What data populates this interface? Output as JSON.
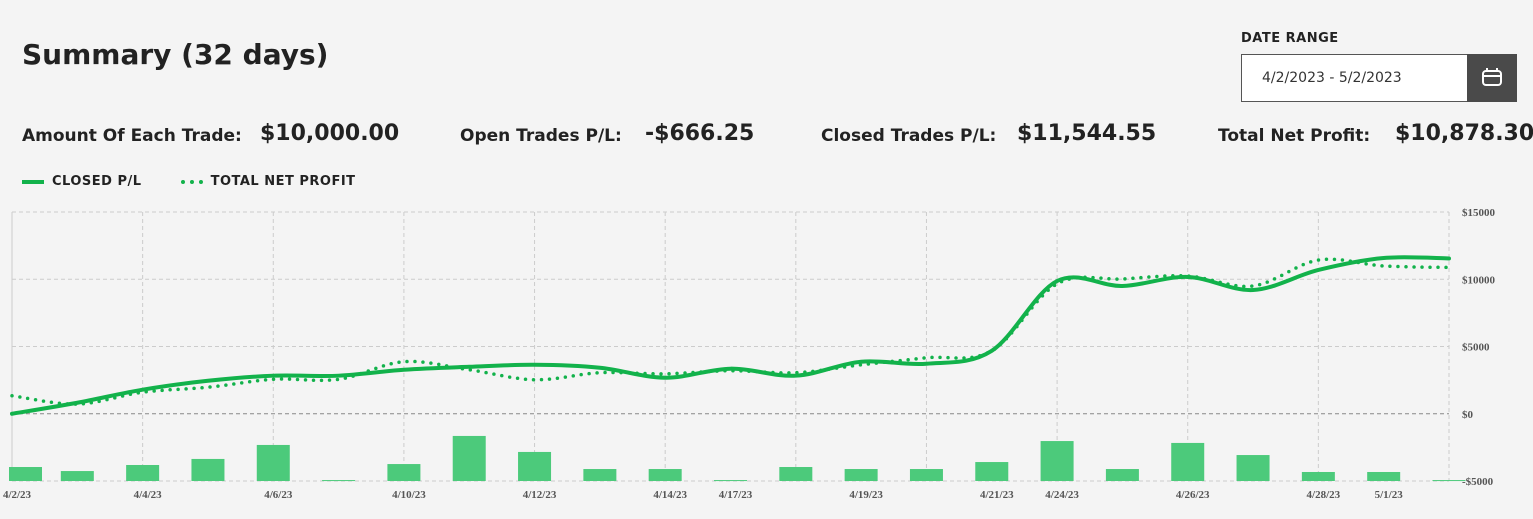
{
  "header": {
    "title": "Summary (32 days)"
  },
  "date_range": {
    "label": "DATE RANGE",
    "value": "4/2/2023 - 5/2/2023"
  },
  "stats": [
    {
      "label": "Amount Of Each Trade:",
      "value": "$10,000.00"
    },
    {
      "label": "Open Trades P/L:",
      "value": "-$666.25"
    },
    {
      "label": "Closed Trades P/L:",
      "value": "$11,544.55"
    },
    {
      "label": "Total Net Profit:",
      "value": "$10,878.30"
    }
  ],
  "chart_data": {
    "type": "line",
    "categories": [
      "4/2/23",
      null,
      "4/4/23",
      null,
      "4/6/23",
      null,
      "4/10/23",
      null,
      "4/12/23",
      null,
      "4/14/23",
      "4/17/23",
      null,
      "4/19/23",
      null,
      "4/21/23",
      "4/24/23",
      null,
      "4/26/23",
      null,
      "4/28/23",
      "5/1/23",
      null
    ],
    "series": [
      {
        "name": "CLOSED P/L",
        "color": "#12b24b",
        "style": "solid",
        "values": [
          0,
          820,
          1790,
          2450,
          2830,
          2830,
          3270,
          3490,
          3640,
          3420,
          2680,
          3350,
          2830,
          3870,
          3720,
          4680,
          9870,
          9500,
          10170,
          9200,
          10690,
          11580,
          11545
        ]
      },
      {
        "name": "TOTAL NET PROFIT",
        "color": "#12b24b",
        "style": "dotted",
        "values": [
          1340,
          720,
          1600,
          1970,
          2560,
          2560,
          3870,
          3270,
          2530,
          3050,
          2970,
          3200,
          3050,
          3640,
          4160,
          4680,
          9660,
          10020,
          10240,
          9500,
          11430,
          10990,
          10878
        ]
      },
      {
        "type": "bar",
        "color": "#4cca7b",
        "values": [
          -3960,
          -4260,
          -3810,
          -3360,
          -2320,
          -4930,
          -3740,
          -1650,
          -2840,
          -4110,
          -4110,
          -4930,
          -3960,
          -4110,
          -4110,
          -3590,
          -2030,
          -4110,
          -2170,
          -3070,
          -4330,
          -4330,
          -4930
        ]
      }
    ],
    "ylim": [
      -5000,
      15000
    ],
    "yticks": [
      {
        "value": -5000,
        "label": "-$5000"
      },
      {
        "value": 0,
        "label": "$0"
      },
      {
        "value": 5000,
        "label": "$5000"
      },
      {
        "value": 10000,
        "label": "$10000"
      },
      {
        "value": 15000,
        "label": "$15000"
      }
    ],
    "grid": true
  }
}
